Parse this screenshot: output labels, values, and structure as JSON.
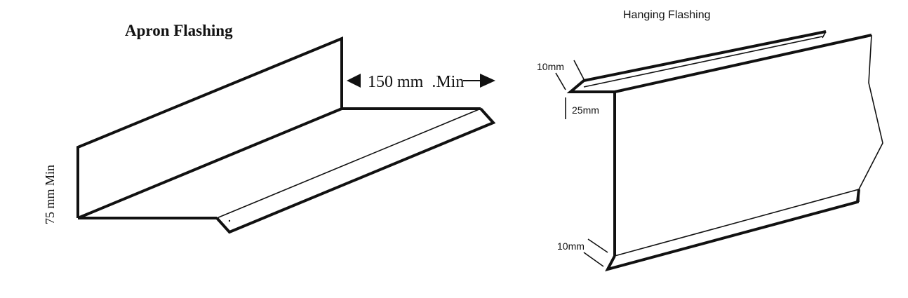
{
  "apron": {
    "title": "Apron Flashing",
    "width_label": "150 mm  .Min",
    "height_label": "75 mm Min"
  },
  "hanging": {
    "title": "Hanging Flashing",
    "top_fold_label": "10mm",
    "drop_label": "25mm",
    "bottom_fold_label": "10mm"
  },
  "colors": {
    "line": "#111111",
    "background": "#ffffff"
  }
}
